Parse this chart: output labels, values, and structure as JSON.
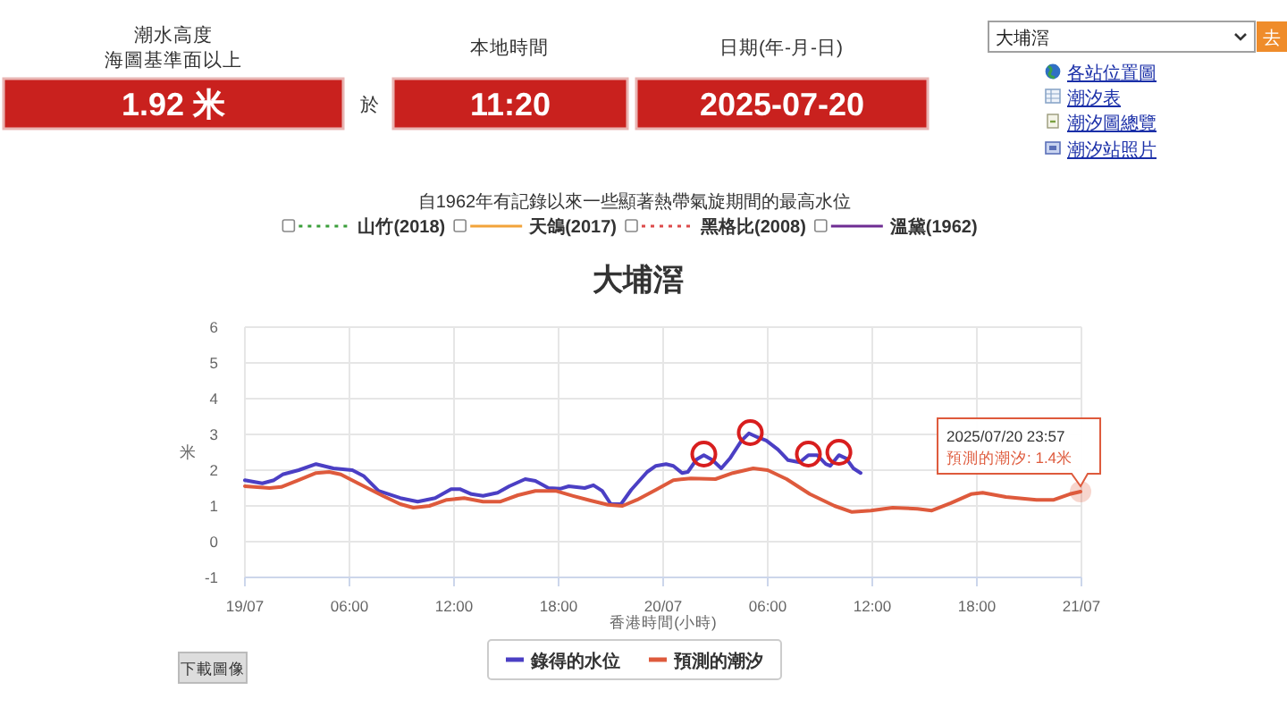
{
  "chart_data": [
    {
      "type": "other",
      "annotations": [
        "潮水高度",
        "海圖基準面以上",
        "1.92 米",
        "於",
        "本地時間",
        "11:20",
        "日期(年-月-日)",
        "2025-07-20",
        "大埔滘",
        "去",
        "各站位置圖",
        "潮汐表",
        "潮汐圖總覽",
        "潮汐站照片"
      ]
    },
    {
      "type": "other",
      "title": "自1962年有記錄以來一些顯著熱帶氣旋期間的最高水位",
      "legend": "top",
      "series": [
        {
          "name": "山竹(2018)",
          "color": "#3a9e3a",
          "line_style": "dotted"
        },
        {
          "name": "天鴿(2017)",
          "color": "#f2a33a",
          "line_style": "solid"
        },
        {
          "name": "黑格比(2008)",
          "color": "#dd4b4b",
          "line_style": "dotted"
        },
        {
          "name": "溫黛(1962)",
          "color": "#6e2c93",
          "line_style": "solid"
        }
      ]
    },
    {
      "type": "line",
      "title": "大埔滘",
      "xlabel": "香港時間(小時)",
      "ylabel": "米",
      "xlim": [
        "2025-07-19T00:00",
        "2025-07-21T00:00"
      ],
      "xticks": [
        {
          "value": "2025-07-19T00:00",
          "label": "19/07"
        },
        {
          "value": "2025-07-19T06:00",
          "label": "06:00"
        },
        {
          "value": "2025-07-19T12:00",
          "label": "12:00"
        },
        {
          "value": "2025-07-19T18:00",
          "label": "18:00"
        },
        {
          "value": "2025-07-20T00:00",
          "label": "20/07"
        },
        {
          "value": "2025-07-20T06:00",
          "label": "06:00"
        },
        {
          "value": "2025-07-20T12:00",
          "label": "12:00"
        },
        {
          "value": "2025-07-20T18:00",
          "label": "18:00"
        },
        {
          "value": "2025-07-21T00:00",
          "label": "21/07"
        }
      ],
      "ylim": [
        -1,
        6
      ],
      "yticks": [
        -1,
        0,
        1,
        2,
        3,
        4,
        5,
        6
      ],
      "grid": true,
      "legend": "bottom",
      "series": [
        {
          "name": "錄得的水位",
          "color": "#4b3fc4",
          "x": [
            "2025-07-19T00:00",
            "2025-07-19T01:00",
            "2025-07-19T01:40",
            "2025-07-19T02:10",
            "2025-07-19T03:05",
            "2025-07-19T04:05",
            "2025-07-19T05:05",
            "2025-07-19T06:10",
            "2025-07-19T06:50",
            "2025-07-19T07:40",
            "2025-07-19T08:55",
            "2025-07-19T09:55",
            "2025-07-19T10:55",
            "2025-07-19T11:50",
            "2025-07-19T12:20",
            "2025-07-19T13:00",
            "2025-07-19T13:40",
            "2025-07-19T14:30",
            "2025-07-19T15:10",
            "2025-07-19T16:05",
            "2025-07-19T16:40",
            "2025-07-19T17:25",
            "2025-07-19T18:05",
            "2025-07-19T18:35",
            "2025-07-19T19:30",
            "2025-07-19T20:00",
            "2025-07-19T20:30",
            "2025-07-19T21:00",
            "2025-07-19T21:35",
            "2025-07-19T22:10",
            "2025-07-19T23:05",
            "2025-07-19T23:35",
            "2025-07-20T00:10",
            "2025-07-20T00:35",
            "2025-07-20T01:05",
            "2025-07-20T01:25",
            "2025-07-20T01:55",
            "2025-07-20T02:20",
            "2025-07-20T02:50",
            "2025-07-20T03:20",
            "2025-07-20T03:50",
            "2025-07-20T04:30",
            "2025-07-20T04:55",
            "2025-07-20T05:25",
            "2025-07-20T05:55",
            "2025-07-20T06:35",
            "2025-07-20T07:10",
            "2025-07-20T07:50",
            "2025-07-20T08:20",
            "2025-07-20T08:50",
            "2025-07-20T09:20",
            "2025-07-20T09:35",
            "2025-07-20T10:05",
            "2025-07-20T10:30",
            "2025-07-20T10:55",
            "2025-07-20T11:20"
          ],
          "values": [
            1.72,
            1.63,
            1.72,
            1.88,
            2.0,
            2.17,
            2.05,
            2.0,
            1.83,
            1.42,
            1.22,
            1.12,
            1.22,
            1.47,
            1.47,
            1.33,
            1.28,
            1.37,
            1.55,
            1.75,
            1.7,
            1.5,
            1.48,
            1.55,
            1.5,
            1.58,
            1.42,
            1.05,
            1.05,
            1.45,
            1.95,
            2.12,
            2.17,
            2.12,
            1.92,
            1.95,
            2.3,
            2.42,
            2.28,
            2.05,
            2.33,
            2.83,
            3.03,
            2.92,
            2.83,
            2.58,
            2.28,
            2.22,
            2.42,
            2.42,
            2.17,
            2.12,
            2.42,
            2.33,
            2.05,
            1.92
          ]
        },
        {
          "name": "預測的潮汐",
          "color": "#de5a3c",
          "x": [
            "2025-07-19T00:00",
            "2025-07-19T01:25",
            "2025-07-19T02:05",
            "2025-07-19T03:05",
            "2025-07-19T04:05",
            "2025-07-19T04:50",
            "2025-07-19T05:30",
            "2025-07-19T06:30",
            "2025-07-19T07:55",
            "2025-07-19T08:55",
            "2025-07-19T09:40",
            "2025-07-19T10:35",
            "2025-07-19T11:35",
            "2025-07-19T12:35",
            "2025-07-19T13:40",
            "2025-07-19T14:40",
            "2025-07-19T15:40",
            "2025-07-19T16:40",
            "2025-07-19T17:50",
            "2025-07-19T18:50",
            "2025-07-19T19:50",
            "2025-07-19T20:50",
            "2025-07-19T21:40",
            "2025-07-19T22:30",
            "2025-07-19T23:35",
            "2025-07-20T00:35",
            "2025-07-20T01:35",
            "2025-07-20T03:00",
            "2025-07-20T04:00",
            "2025-07-20T05:10",
            "2025-07-20T06:00",
            "2025-07-20T07:05",
            "2025-07-20T08:25",
            "2025-07-20T09:50",
            "2025-07-20T10:50",
            "2025-07-20T11:55",
            "2025-07-20T13:10",
            "2025-07-20T14:35",
            "2025-07-20T15:25",
            "2025-07-20T16:30",
            "2025-07-20T17:40",
            "2025-07-20T18:20",
            "2025-07-20T19:40",
            "2025-07-20T21:25",
            "2025-07-20T22:25",
            "2025-07-20T23:20",
            "2025-07-20T23:57"
          ],
          "values": [
            1.55,
            1.5,
            1.53,
            1.72,
            1.92,
            1.95,
            1.88,
            1.63,
            1.28,
            1.05,
            0.95,
            1.0,
            1.17,
            1.22,
            1.12,
            1.12,
            1.3,
            1.42,
            1.42,
            1.28,
            1.15,
            1.03,
            1.0,
            1.17,
            1.45,
            1.72,
            1.77,
            1.75,
            1.92,
            2.05,
            2.0,
            1.75,
            1.33,
            1.0,
            0.83,
            0.87,
            0.95,
            0.92,
            0.87,
            1.08,
            1.33,
            1.37,
            1.25,
            1.17,
            1.17,
            1.33,
            1.4
          ]
        },
        {
          "type": "scatter",
          "marker": "circle",
          "color": "#d81e1e",
          "x": [
            "2025-07-20T02:20",
            "2025-07-20T05:00",
            "2025-07-20T08:20",
            "2025-07-20T10:05"
          ],
          "values": [
            2.45,
            3.05,
            2.45,
            2.5
          ]
        }
      ],
      "annotations": [
        {
          "text": "2025/07/20 23:57\n預測的潮汐: 1.4米",
          "x": "2025-07-20T23:57",
          "y": 1.4
        },
        "下載圖像"
      ]
    }
  ]
}
